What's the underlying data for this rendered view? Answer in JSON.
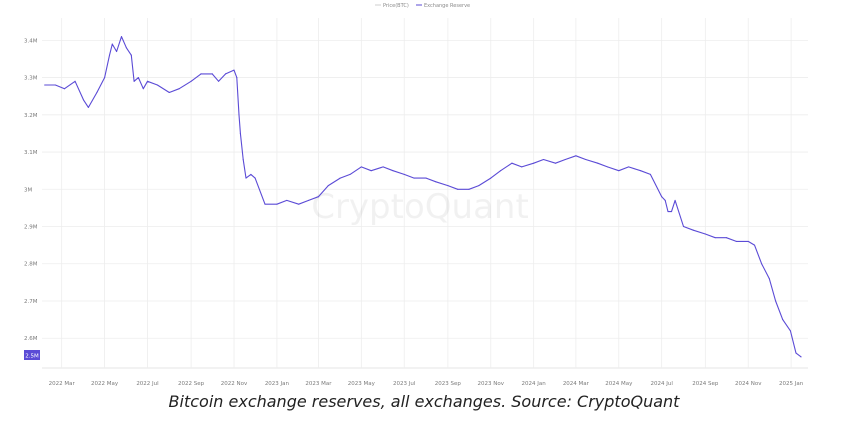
{
  "caption": "Bitcoin exchange reserves, all exchanges. Source: CryptoQuant",
  "watermark": "CryptoQuant",
  "legend": [
    {
      "label": "Price(BTC)",
      "color": "#cfcfcf"
    },
    {
      "label": "Exchange Reserve",
      "color": "#5b4bd6"
    }
  ],
  "colors": {
    "line": "#5b4bd6",
    "current_badge": "#5b4bd6",
    "grid": "#ededed"
  },
  "current_value_label": "2.5M",
  "chart_data": {
    "type": "line",
    "title": "",
    "xlabel": "",
    "ylabel": "",
    "ylim": [
      2.52,
      3.46
    ],
    "y_ticks": [
      {
        "value": 3.4,
        "label": "3.4M"
      },
      {
        "value": 3.3,
        "label": "3.3M"
      },
      {
        "value": 3.2,
        "label": "3.2M"
      },
      {
        "value": 3.1,
        "label": "3.1M"
      },
      {
        "value": 3.0,
        "label": "3M"
      },
      {
        "value": 2.9,
        "label": "2.9M"
      },
      {
        "value": 2.8,
        "label": "2.8M"
      },
      {
        "value": 2.7,
        "label": "2.7M"
      },
      {
        "value": 2.6,
        "label": "2.6M"
      }
    ],
    "x_ticks": [
      "2022 Mar",
      "2022 May",
      "2022 Jul",
      "2022 Sep",
      "2022 Nov",
      "2023 Jan",
      "2023 Mar",
      "2023 May",
      "2023 Jul",
      "2023 Sep",
      "2023 Nov",
      "2024 Jan",
      "2024 Mar",
      "2024 May",
      "2024 Jul",
      "2024 Sep",
      "2024 Nov",
      "2025 Jan"
    ],
    "grid": true,
    "legend_position": "top-center",
    "series": [
      {
        "name": "Exchange Reserve",
        "x": [
          "2022-02-05",
          "2022-02-20",
          "2022-03-05",
          "2022-03-20",
          "2022-04-01",
          "2022-04-08",
          "2022-04-20",
          "2022-05-01",
          "2022-05-08",
          "2022-05-12",
          "2022-05-18",
          "2022-05-25",
          "2022-06-01",
          "2022-06-08",
          "2022-06-12",
          "2022-06-18",
          "2022-06-25",
          "2022-07-01",
          "2022-07-15",
          "2022-08-01",
          "2022-08-15",
          "2022-09-01",
          "2022-09-15",
          "2022-10-01",
          "2022-10-10",
          "2022-10-20",
          "2022-11-01",
          "2022-11-05",
          "2022-11-08",
          "2022-11-10",
          "2022-11-14",
          "2022-11-18",
          "2022-11-25",
          "2022-12-01",
          "2022-12-15",
          "2023-01-01",
          "2023-01-15",
          "2023-02-01",
          "2023-02-15",
          "2023-03-01",
          "2023-03-15",
          "2023-04-01",
          "2023-04-15",
          "2023-05-01",
          "2023-05-15",
          "2023-06-01",
          "2023-06-15",
          "2023-07-01",
          "2023-07-15",
          "2023-08-01",
          "2023-08-15",
          "2023-09-01",
          "2023-09-15",
          "2023-10-01",
          "2023-10-15",
          "2023-11-01",
          "2023-11-15",
          "2023-12-01",
          "2023-12-15",
          "2024-01-01",
          "2024-01-15",
          "2024-02-01",
          "2024-02-15",
          "2024-03-01",
          "2024-03-15",
          "2024-04-01",
          "2024-04-15",
          "2024-05-01",
          "2024-05-15",
          "2024-06-01",
          "2024-06-15",
          "2024-07-01",
          "2024-07-06",
          "2024-07-10",
          "2024-07-15",
          "2024-07-20",
          "2024-08-01",
          "2024-08-15",
          "2024-09-01",
          "2024-09-15",
          "2024-10-01",
          "2024-10-15",
          "2024-11-01",
          "2024-11-10",
          "2024-11-20",
          "2024-12-01",
          "2024-12-10",
          "2024-12-20",
          "2024-12-31",
          "2025-01-08",
          "2025-01-15"
        ],
        "values": [
          3.28,
          3.28,
          3.27,
          3.29,
          3.24,
          3.22,
          3.26,
          3.3,
          3.36,
          3.39,
          3.37,
          3.41,
          3.38,
          3.36,
          3.29,
          3.3,
          3.27,
          3.29,
          3.28,
          3.26,
          3.27,
          3.29,
          3.31,
          3.31,
          3.29,
          3.31,
          3.32,
          3.3,
          3.2,
          3.15,
          3.08,
          3.03,
          3.04,
          3.03,
          2.96,
          2.96,
          2.97,
          2.96,
          2.97,
          2.98,
          3.01,
          3.03,
          3.04,
          3.06,
          3.05,
          3.06,
          3.05,
          3.04,
          3.03,
          3.03,
          3.02,
          3.01,
          3.0,
          3.0,
          3.01,
          3.03,
          3.05,
          3.07,
          3.06,
          3.07,
          3.08,
          3.07,
          3.08,
          3.09,
          3.08,
          3.07,
          3.06,
          3.05,
          3.06,
          3.05,
          3.04,
          2.98,
          2.97,
          2.94,
          2.94,
          2.97,
          2.9,
          2.89,
          2.88,
          2.87,
          2.87,
          2.86,
          2.86,
          2.85,
          2.8,
          2.76,
          2.7,
          2.65,
          2.62,
          2.56,
          2.55
        ]
      }
    ]
  }
}
